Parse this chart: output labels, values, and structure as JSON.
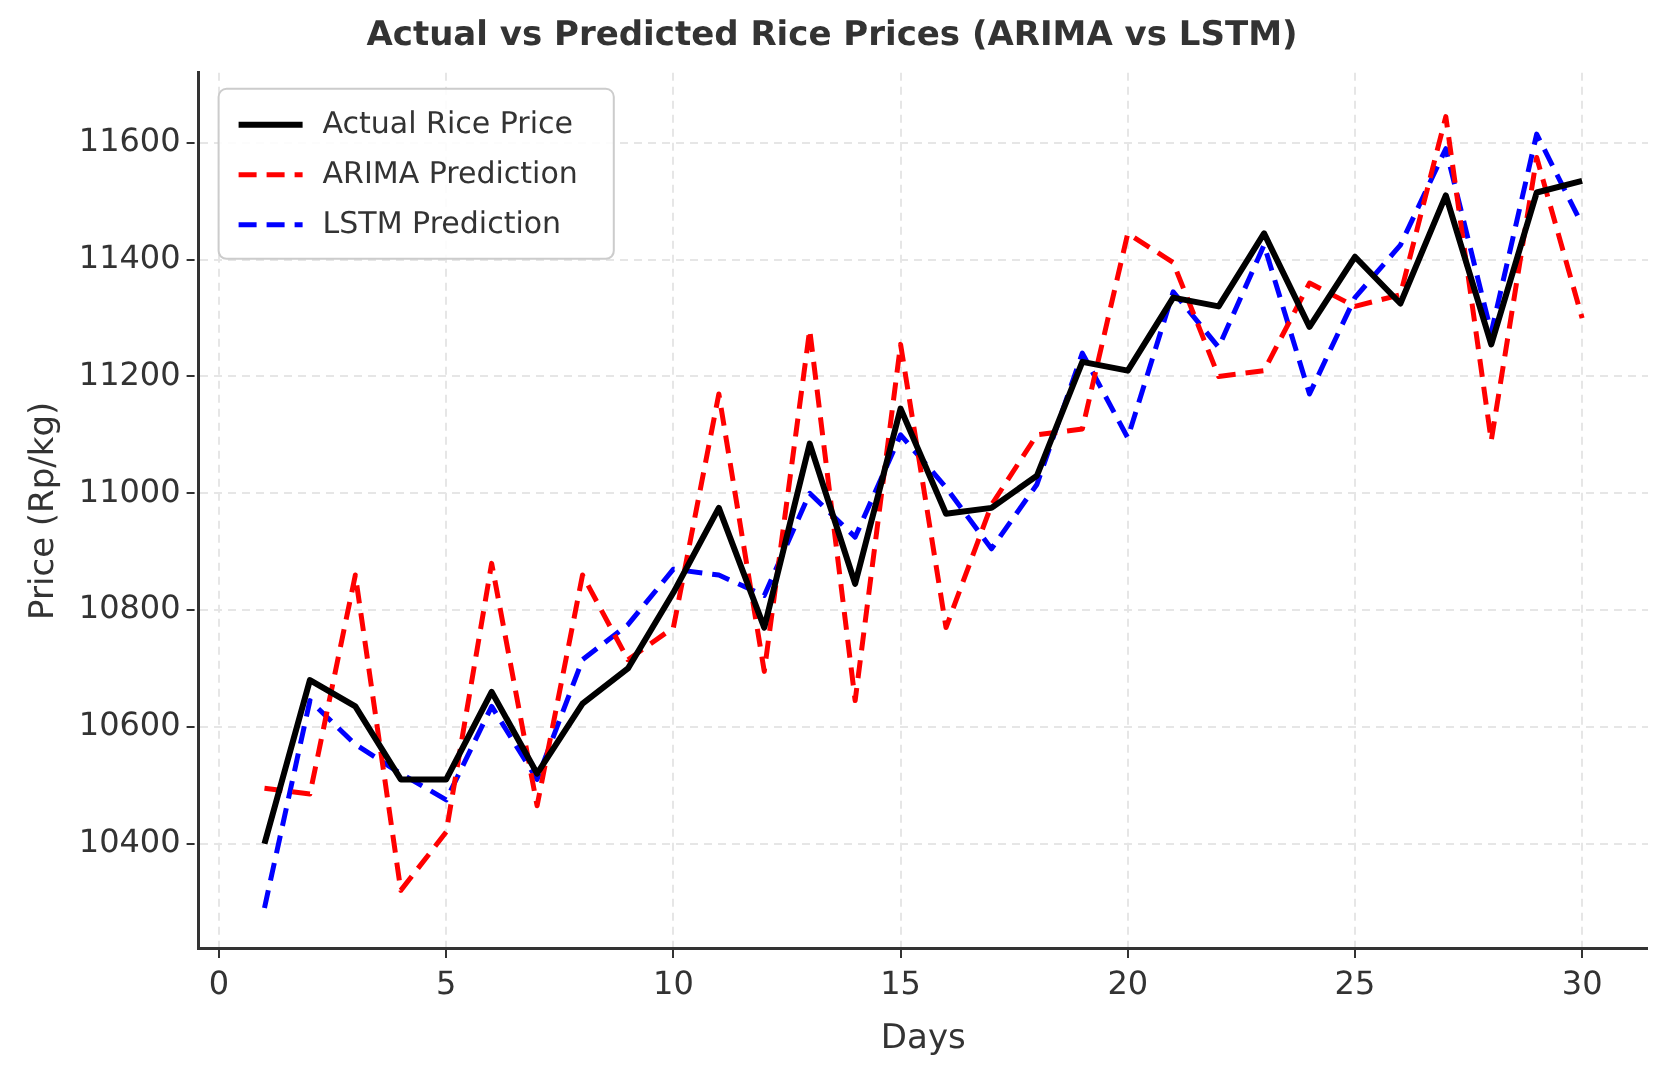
{
  "chart_data": {
    "type": "line",
    "title": "Actual vs Predicted Rice Prices (ARIMA vs LSTM)",
    "xlabel": "Days",
    "ylabel": "Price (Rp/kg)",
    "x": [
      1,
      2,
      3,
      4,
      5,
      6,
      7,
      8,
      9,
      10,
      11,
      12,
      13,
      14,
      15,
      16,
      17,
      18,
      19,
      20,
      21,
      22,
      23,
      24,
      25,
      26,
      27,
      28,
      29,
      30
    ],
    "series": [
      {
        "name": "Actual Rice Price",
        "color": "#000000",
        "line_style": "solid",
        "values": [
          10400,
          10680,
          10635,
          10510,
          10510,
          10660,
          10520,
          10640,
          10700,
          10830,
          10975,
          10770,
          11085,
          10845,
          11145,
          10965,
          10975,
          11030,
          11225,
          11210,
          11335,
          11320,
          11445,
          11285,
          11405,
          11325,
          11510,
          11255,
          11515,
          11535
        ]
      },
      {
        "name": "ARIMA Prediction",
        "color": "#ff0000",
        "line_style": "dashed",
        "values": [
          10495,
          10485,
          10860,
          10320,
          10420,
          10880,
          10465,
          10860,
          10715,
          10770,
          11170,
          10695,
          11280,
          10645,
          11255,
          10770,
          10980,
          11100,
          11110,
          11445,
          11395,
          11200,
          11210,
          11360,
          11320,
          11340,
          11645,
          11090,
          11575,
          11300
        ]
      },
      {
        "name": "LSTM Prediction",
        "color": "#0000ff",
        "line_style": "dashed",
        "values": [
          10290,
          10645,
          10570,
          10520,
          10475,
          10635,
          10510,
          10715,
          10775,
          10870,
          10860,
          10825,
          11000,
          10925,
          11100,
          11010,
          10905,
          11015,
          11240,
          11095,
          11345,
          11250,
          11425,
          11170,
          11335,
          11425,
          11590,
          11275,
          11615,
          11460
        ]
      }
    ],
    "xlim": [
      -0.45,
      31.45
    ],
    "xticks": [
      0,
      5,
      10,
      15,
      20,
      25,
      30
    ],
    "ylim": [
      10220,
      11720
    ],
    "yticks": [
      10400,
      10600,
      10800,
      11000,
      11200,
      11400,
      11600
    ],
    "grid": true,
    "legend": "top left",
    "marker": "none"
  }
}
